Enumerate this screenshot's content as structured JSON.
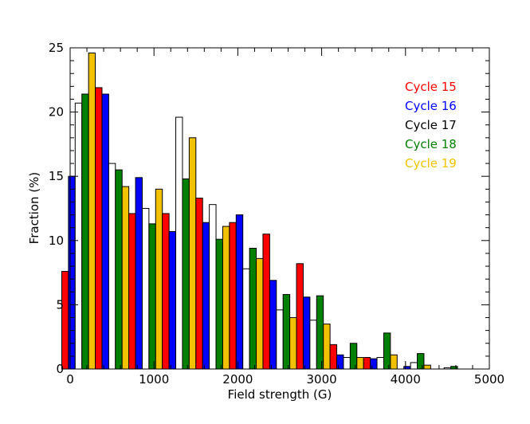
{
  "chart_data": {
    "type": "bar",
    "xlabel": "Field strength (G)",
    "ylabel": "Fraction (%)",
    "xlim": [
      0,
      5000
    ],
    "ylim": [
      0,
      25
    ],
    "x_ticks": [
      0,
      1000,
      2000,
      3000,
      4000,
      5000
    ],
    "y_ticks": [
      0,
      5,
      10,
      15,
      20,
      25
    ],
    "legend_position": "top-right",
    "bin_width": 400,
    "categories": [
      100,
      500,
      900,
      1300,
      1700,
      2100,
      2500,
      2900,
      3300,
      3700,
      4100,
      4500
    ],
    "series": [
      {
        "name": "Cycle 15",
        "color": "#ff0000",
        "values": [
          7.6,
          21.9,
          12.1,
          12.1,
          13.3,
          11.4,
          10.5,
          8.2,
          1.9,
          0.9,
          0.0,
          0.0
        ]
      },
      {
        "name": "Cycle 16",
        "color": "#0000ff",
        "values": [
          15.0,
          21.4,
          14.9,
          10.7,
          11.4,
          12.0,
          6.9,
          5.6,
          1.1,
          0.8,
          0.2,
          0.0
        ]
      },
      {
        "name": "Cycle 17",
        "color": "#ffffff",
        "values": [
          20.7,
          16.0,
          12.5,
          19.6,
          12.8,
          7.8,
          4.6,
          3.8,
          0.9,
          0.9,
          0.5,
          0.1
        ]
      },
      {
        "name": "Cycle 18",
        "color": "#008000",
        "values": [
          21.4,
          15.5,
          11.3,
          14.8,
          10.1,
          9.4,
          5.8,
          5.7,
          2.0,
          2.8,
          1.2,
          0.2
        ]
      },
      {
        "name": "Cycle 19",
        "color": "#f2c200",
        "values": [
          24.6,
          14.2,
          14.0,
          18.0,
          11.1,
          8.6,
          4.0,
          3.5,
          0.9,
          1.1,
          0.3,
          0.0
        ]
      }
    ]
  }
}
